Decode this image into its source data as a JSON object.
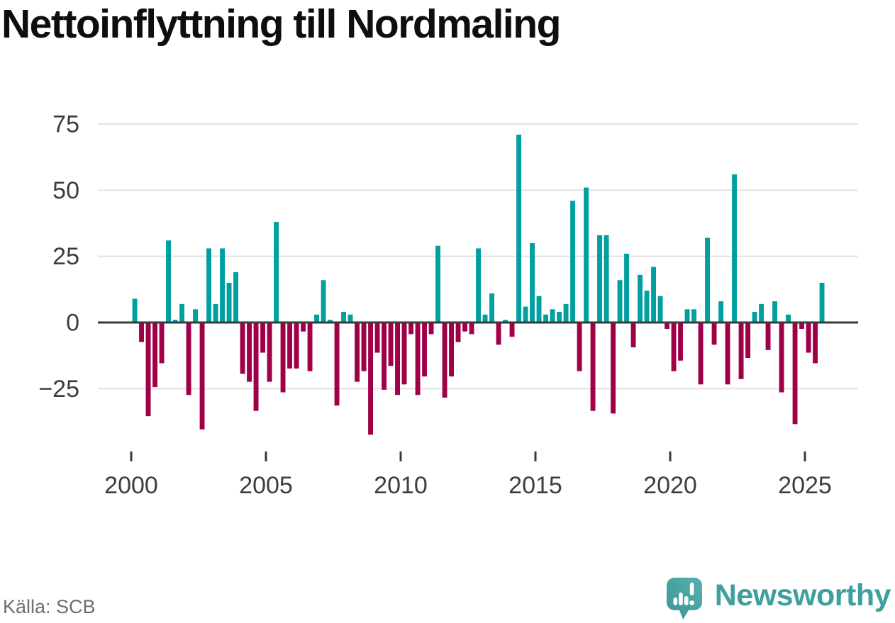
{
  "header": {
    "title": "Nettoinflyttning till Nordmaling"
  },
  "footer": {
    "source": "Källa: SCB",
    "brand": {
      "name": "Newsworthy",
      "icon": "newsworthy-logo-icon"
    }
  },
  "colors": {
    "positive_bar": "#009fa0",
    "negative_bar": "#a00048",
    "baseline": "#3a3a3a",
    "gridline": "#e2e2e2",
    "axis_text": "#3d3d3d",
    "title_text": "#0e0e0e",
    "source_text": "#6d6d76",
    "brand_teal": "#3f9f9f"
  },
  "chart_data": {
    "type": "bar",
    "title": "Nettoinflyttning till Nordmaling",
    "start_period": "2000 Q1",
    "end_period": "2025 Q3",
    "bars_per_year": 4,
    "grid": "horizontal",
    "legend": "none",
    "ylim": [
      -45,
      78
    ],
    "y_ticks": [
      {
        "value": 75,
        "label": "75"
      },
      {
        "value": 50,
        "label": "50"
      },
      {
        "value": 25,
        "label": "25"
      },
      {
        "value": 0,
        "label": "0"
      },
      {
        "value": -25,
        "label": "−25"
      }
    ],
    "x_ticks": [
      {
        "label": "2000",
        "quarter_index": 0
      },
      {
        "label": "2005",
        "quarter_index": 20
      },
      {
        "label": "2010",
        "quarter_index": 40
      },
      {
        "label": "2015",
        "quarter_index": 60
      },
      {
        "label": "2020",
        "quarter_index": 80
      },
      {
        "label": "2025",
        "quarter_index": 100
      }
    ],
    "values": [
      9,
      -7,
      -35,
      -24,
      -15,
      31,
      1,
      7,
      -27,
      5,
      -40,
      28,
      7,
      28,
      15,
      19,
      -19,
      -22,
      -33,
      -11,
      -22,
      38,
      -26,
      -17,
      -17,
      -3,
      -18,
      3,
      16,
      1,
      -31,
      4,
      3,
      -22,
      -18,
      -42,
      -11,
      -25,
      -16,
      -27,
      -23,
      -4,
      -27,
      -20,
      -4,
      29,
      -28,
      -20,
      -7,
      -3,
      -4,
      28,
      3,
      11,
      -8,
      1,
      -5,
      71,
      6,
      30,
      10,
      3,
      5,
      4,
      7,
      46,
      -18,
      51,
      -33,
      33,
      33,
      -34,
      16,
      26,
      -9,
      18,
      12,
      21,
      10,
      -2,
      -18,
      -14,
      5,
      5,
      -23,
      32,
      -8,
      8,
      -23,
      56,
      -21,
      -13,
      4,
      7,
      -10,
      8,
      -26,
      3,
      -38,
      -2,
      -11,
      -15,
      15
    ]
  }
}
